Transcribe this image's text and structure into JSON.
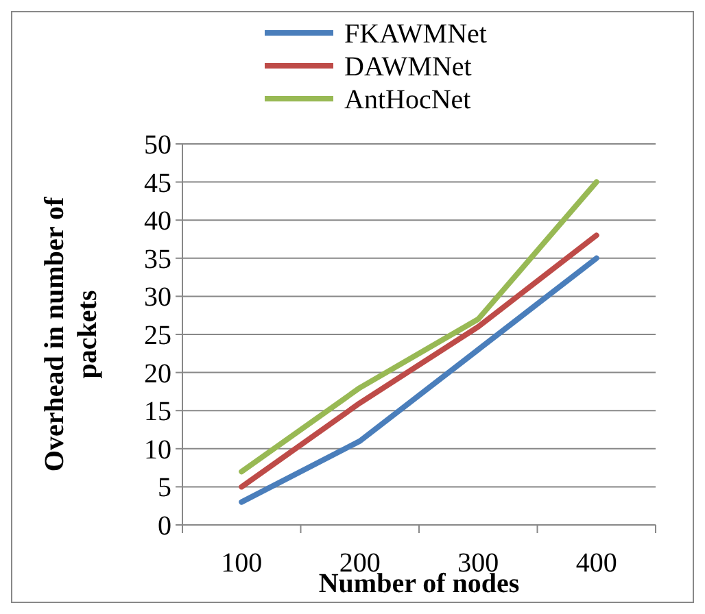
{
  "chart_data": {
    "type": "line",
    "xlabel": "Number of nodes",
    "ylabel": "Overhead in number of packets",
    "categories": [
      "100",
      "200",
      "300",
      "400"
    ],
    "series": [
      {
        "name": "FKAWMNet",
        "color": "#4a7ebb",
        "values": [
          3,
          11,
          23,
          35
        ]
      },
      {
        "name": "DAWMNet",
        "color": "#be4b48",
        "values": [
          5,
          16,
          26,
          38
        ]
      },
      {
        "name": "AntHocNet",
        "color": "#98b954",
        "values": [
          7,
          18,
          27,
          45
        ]
      }
    ],
    "ylim": [
      0,
      50
    ],
    "yticks": [
      0,
      5,
      10,
      15,
      20,
      25,
      30,
      35,
      40,
      45,
      50
    ],
    "grid": "y",
    "legend": "top",
    "marker": "none",
    "line_style": "solid"
  }
}
